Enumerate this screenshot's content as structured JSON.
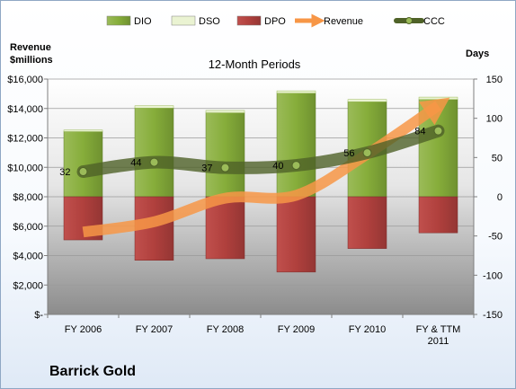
{
  "company": "Barrick Gold",
  "chart_data": {
    "type": "bar",
    "title": "12-Month Periods",
    "categories": [
      "FY 2006",
      "FY 2007",
      "FY 2008",
      "FY 2009",
      "FY 2010",
      "FY & TTM 2011"
    ],
    "y_left": {
      "label_line1": "Revenue",
      "label_line2": "$millions",
      "ticks": [
        "$16,000",
        "$14,000",
        "$12,000",
        "$10,000",
        "$8,000",
        "$6,000",
        "$4,000",
        "$2,000",
        "$-"
      ],
      "ylim": [
        0,
        16000
      ]
    },
    "y_right": {
      "label": "Days",
      "ticks": [
        "150",
        "100",
        "50",
        "0",
        "-50",
        "-100",
        "-150"
      ],
      "ylim": [
        -150,
        150
      ]
    },
    "legend": [
      "DIO",
      "DSO",
      "DPO",
      "Revenue",
      "CCC"
    ],
    "legend_placement": "top",
    "colors": {
      "DIO": "#8db33e",
      "DSO": "#eaf3d2",
      "DPO": "#c0504d",
      "Revenue": "#f79646",
      "CCC": "#4f6228"
    },
    "series": [
      {
        "name": "DIO",
        "axis": "right",
        "values": [
          83,
          113,
          107,
          132,
          121,
          124
        ]
      },
      {
        "name": "DSO",
        "axis": "right",
        "values": [
          2,
          3,
          3,
          3,
          3,
          3
        ]
      },
      {
        "name": "DPO",
        "axis": "right",
        "values": [
          -55,
          -81,
          -79,
          -96,
          -66,
          -46
        ]
      },
      {
        "name": "Revenue",
        "axis": "left",
        "values": [
          5600,
          6300,
          7900,
          8100,
          10900,
          14200
        ]
      },
      {
        "name": "CCC",
        "axis": "right",
        "values": [
          32,
          44,
          37,
          40,
          56,
          84
        ]
      }
    ],
    "data_labels": [
      "32",
      "44",
      "37",
      "40",
      "56",
      "84"
    ],
    "x_tick_labels": [
      [
        "FY 2006"
      ],
      [
        "FY 2007"
      ],
      [
        "FY 2008"
      ],
      [
        "FY 2009"
      ],
      [
        "FY 2010"
      ],
      [
        "FY & TTM",
        "2011"
      ]
    ]
  }
}
